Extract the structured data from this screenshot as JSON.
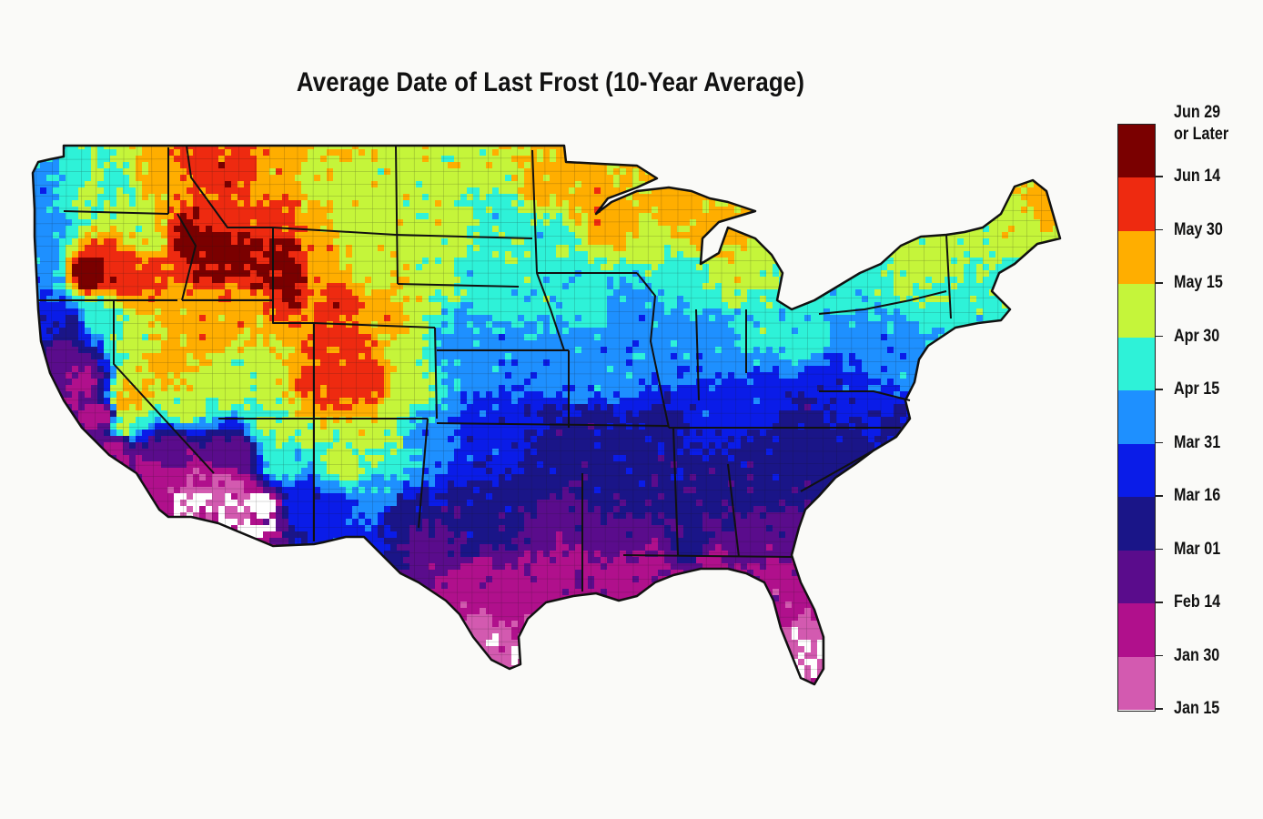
{
  "title": "Average Date of Last Frost (10-Year Average)",
  "legend": {
    "top_label_line1": "Jun 29",
    "top_label_line2": "or Later",
    "ticks": [
      "Jun 14",
      "May 30",
      "May 15",
      "Apr 30",
      "Apr 15",
      "Mar 31",
      "Mar 16",
      "Mar 01",
      "Feb 14",
      "Jan 30",
      "Jan 15"
    ],
    "colors": [
      "#7a0000",
      "#ee2a10",
      "#ffae00",
      "#c5f53a",
      "#2ef2d8",
      "#1e90ff",
      "#0a1ce8",
      "#1a1588",
      "#5a0c8c",
      "#b0108c",
      "#d35ab0"
    ],
    "color_ranges": [
      "Jun 14 - Jun 29 or Later",
      "May 30 - Jun 14",
      "May 15 - May 30",
      "Apr 30 - May 15",
      "Apr 15 - Apr 30",
      "Mar 31 - Apr 15",
      "Mar 16 - Mar 31",
      "Mar 01 - Mar 16",
      "Feb 14 - Mar 01",
      "Jan 30 - Feb 14",
      "Jan 15 - Jan 30"
    ]
  },
  "map_palette": {
    "background": "#fafaf8",
    "outline": "#111111",
    "no_frost": "#ffffff"
  }
}
